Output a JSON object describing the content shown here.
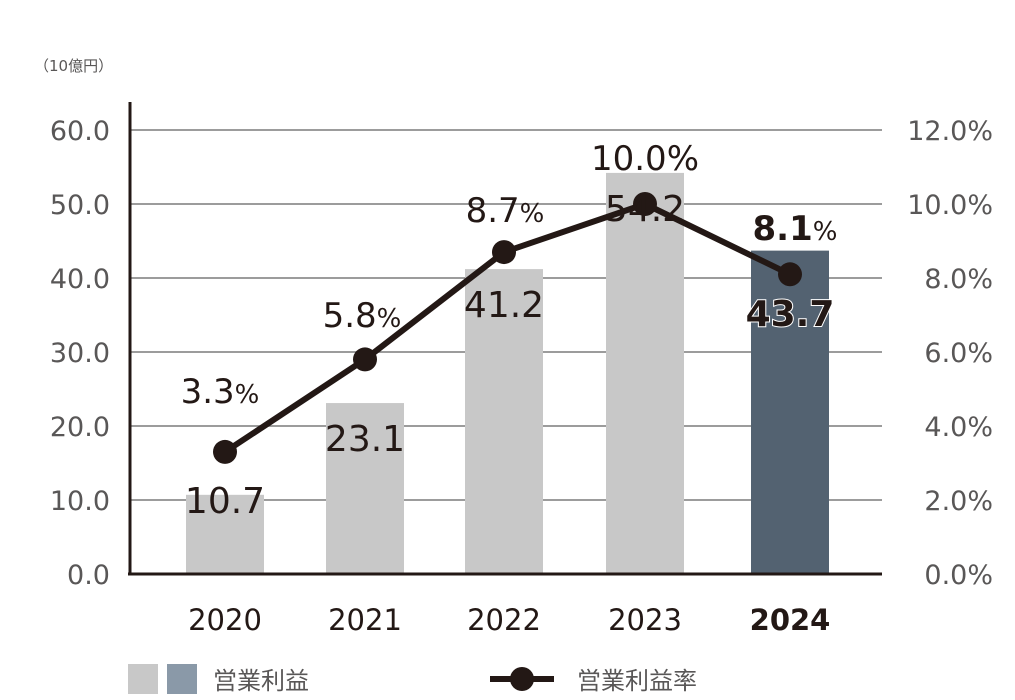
{
  "chart_data": {
    "type": "bar",
    "unit_label": "（10億円）",
    "categories": [
      "2020",
      "2021",
      "2022",
      "2023",
      "2024"
    ],
    "highlight_index": 4,
    "series": [
      {
        "name": "営業利益",
        "type": "bar",
        "axis": "left",
        "values": [
          10.7,
          23.1,
          41.2,
          54.2,
          43.7
        ],
        "labels": [
          "10.7",
          "23.1",
          "41.2",
          "54.2",
          "43.7"
        ]
      },
      {
        "name": "営業利益率",
        "type": "line",
        "axis": "right",
        "values": [
          3.3,
          5.8,
          8.7,
          10.0,
          8.1
        ],
        "labels": [
          "3.3",
          "5.8",
          "8.7",
          "10.0",
          "8.1"
        ],
        "label_suffix": "%"
      }
    ],
    "y_left": {
      "range": [
        0,
        60
      ],
      "ticks": [
        "0.0",
        "10.0",
        "20.0",
        "30.0",
        "40.0",
        "50.0",
        "60.0"
      ]
    },
    "y_right": {
      "range": [
        0,
        12
      ],
      "ticks": [
        "0.0%",
        "2.0%",
        "4.0%",
        "6.0%",
        "8.0%",
        "10.0%",
        "12.0%"
      ]
    },
    "grid": true,
    "legend_position": "bottom",
    "colors": {
      "bar": "#c8c8c8",
      "bar_highlight": "#536271",
      "legend_highlight_swatch": "#8a99a8",
      "line": "#231815",
      "axis": "#231815",
      "grid": "#7b7b7b"
    }
  }
}
